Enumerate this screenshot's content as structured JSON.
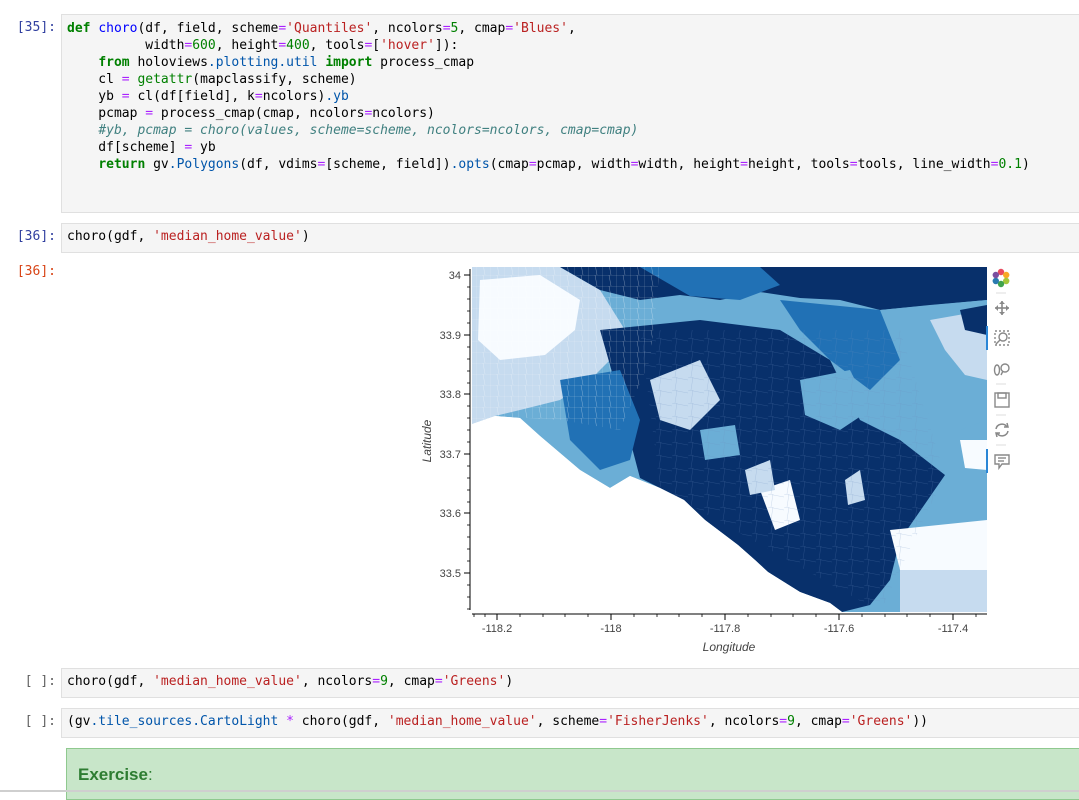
{
  "cells": [
    {
      "prompt": "[35]:",
      "code_lines": [
        "def choro(df, field, scheme='Quantiles', ncolors=5, cmap='Blues',",
        "          width=600, height=400, tools=['hover']):",
        "    from holoviews.plotting.util import process_cmap",
        "    cl = getattr(mapclassify, scheme)",
        "    yb = cl(df[field], k=ncolors).yb",
        "    pcmap = process_cmap(cmap, ncolors=ncolors)",
        "    #yb, pcmap = choro(values, scheme=scheme, ncolors=ncolors, cmap=cmap)",
        "    df[scheme] = yb",
        "    return gv.Polygons(df, vdims=[scheme, field]).opts(cmap=pcmap, width=width, height=height, tools=tools, line_width=0.1)"
      ]
    },
    {
      "prompt": "[36]:",
      "code": "choro(gdf, 'median_home_value')"
    },
    {
      "prompt": "[ ]:",
      "code": "choro(gdf, 'median_home_value', ncolors=9, cmap='Greens')"
    },
    {
      "prompt": "[ ]:",
      "code": "(gv.tile_sources.CartoLight * choro(gdf, 'median_home_value', scheme='FisherJenks', ncolors=9, cmap='Greens'))"
    }
  ],
  "output": {
    "prompt": "[36]:",
    "plot": {
      "xlabel": "Longitude",
      "ylabel": "Latitude",
      "x_ticks": [
        "-118.2",
        "-118",
        "-117.8",
        "-117.6",
        "-117.4"
      ],
      "y_ticks": [
        "34",
        "33.9",
        "33.8",
        "33.7",
        "33.6",
        "33.5"
      ],
      "colors": [
        "#f7fbff",
        "#c6dbef",
        "#6baed6",
        "#2171b5",
        "#08306b"
      ],
      "toolbar": [
        "bokeh-logo-icon",
        "pan-icon",
        "box-zoom-icon",
        "wheel-zoom-icon",
        "save-icon",
        "reset-icon",
        "hover-icon"
      ]
    }
  },
  "exercise": {
    "label": "Exercise",
    "colon": ":"
  }
}
